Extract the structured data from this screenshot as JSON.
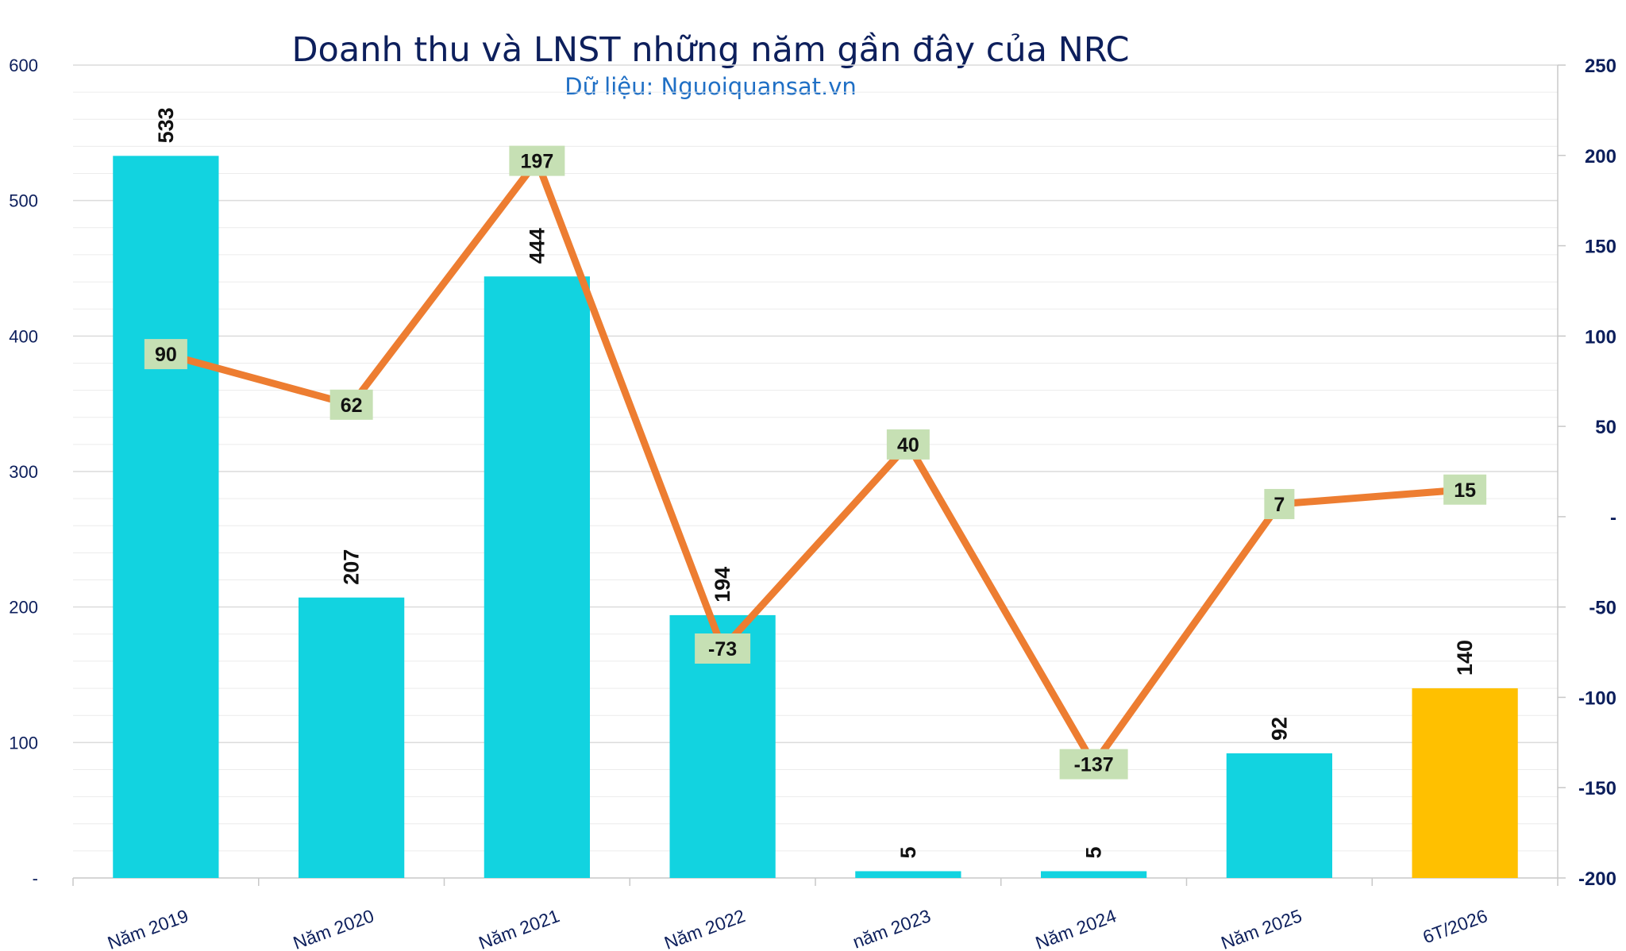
{
  "chart_data": {
    "type": "bar",
    "title": "Doanh thu và LNST những năm gần đây của NRC",
    "subtitle": "Dữ liệu: Nguoiquansat.vn",
    "categories": [
      "Năm 2019",
      "Năm 2020",
      "Năm 2021",
      "Năm 2022",
      "năm 2023",
      "Năm 2024",
      "Năm 2025",
      "6T/2026"
    ],
    "series": [
      {
        "type": "bar",
        "axis": "left",
        "values": [
          533,
          207,
          444,
          194,
          5,
          5,
          92,
          140
        ],
        "colors": [
          "#12d3e0",
          "#12d3e0",
          "#12d3e0",
          "#12d3e0",
          "#12d3e0",
          "#12d3e0",
          "#12d3e0",
          "#ffc000"
        ],
        "labels": [
          "533",
          "207",
          "444",
          "194",
          "5",
          "5",
          "92",
          "140"
        ]
      },
      {
        "type": "line",
        "axis": "right",
        "values": [
          90,
          62,
          197,
          -73,
          40,
          -137,
          7,
          15
        ],
        "color": "#ed7d31",
        "labels": [
          "90",
          "62",
          "197",
          "-73",
          "40",
          "-137",
          "7",
          "15"
        ]
      }
    ],
    "y_left": {
      "ylim": [
        0,
        600
      ],
      "ticks": [
        0,
        100,
        200,
        300,
        400,
        500,
        600
      ],
      "tick_labels": [
        "-",
        "100",
        "200",
        "300",
        "400",
        "500",
        "600"
      ]
    },
    "y_right": {
      "ylim": [
        -200,
        250
      ],
      "ticks": [
        -200,
        -150,
        -100,
        -50,
        0,
        50,
        100,
        150,
        200,
        250
      ],
      "tick_labels": [
        "-200",
        "-150",
        "-100",
        "-50",
        "-",
        "50",
        "100",
        "150",
        "200",
        "250"
      ]
    },
    "grid": true,
    "legend": "none"
  },
  "colors": {
    "axis_text": "#0d1f5c",
    "grid": "#dcdcdc",
    "label_box": "#c6e0b4"
  }
}
